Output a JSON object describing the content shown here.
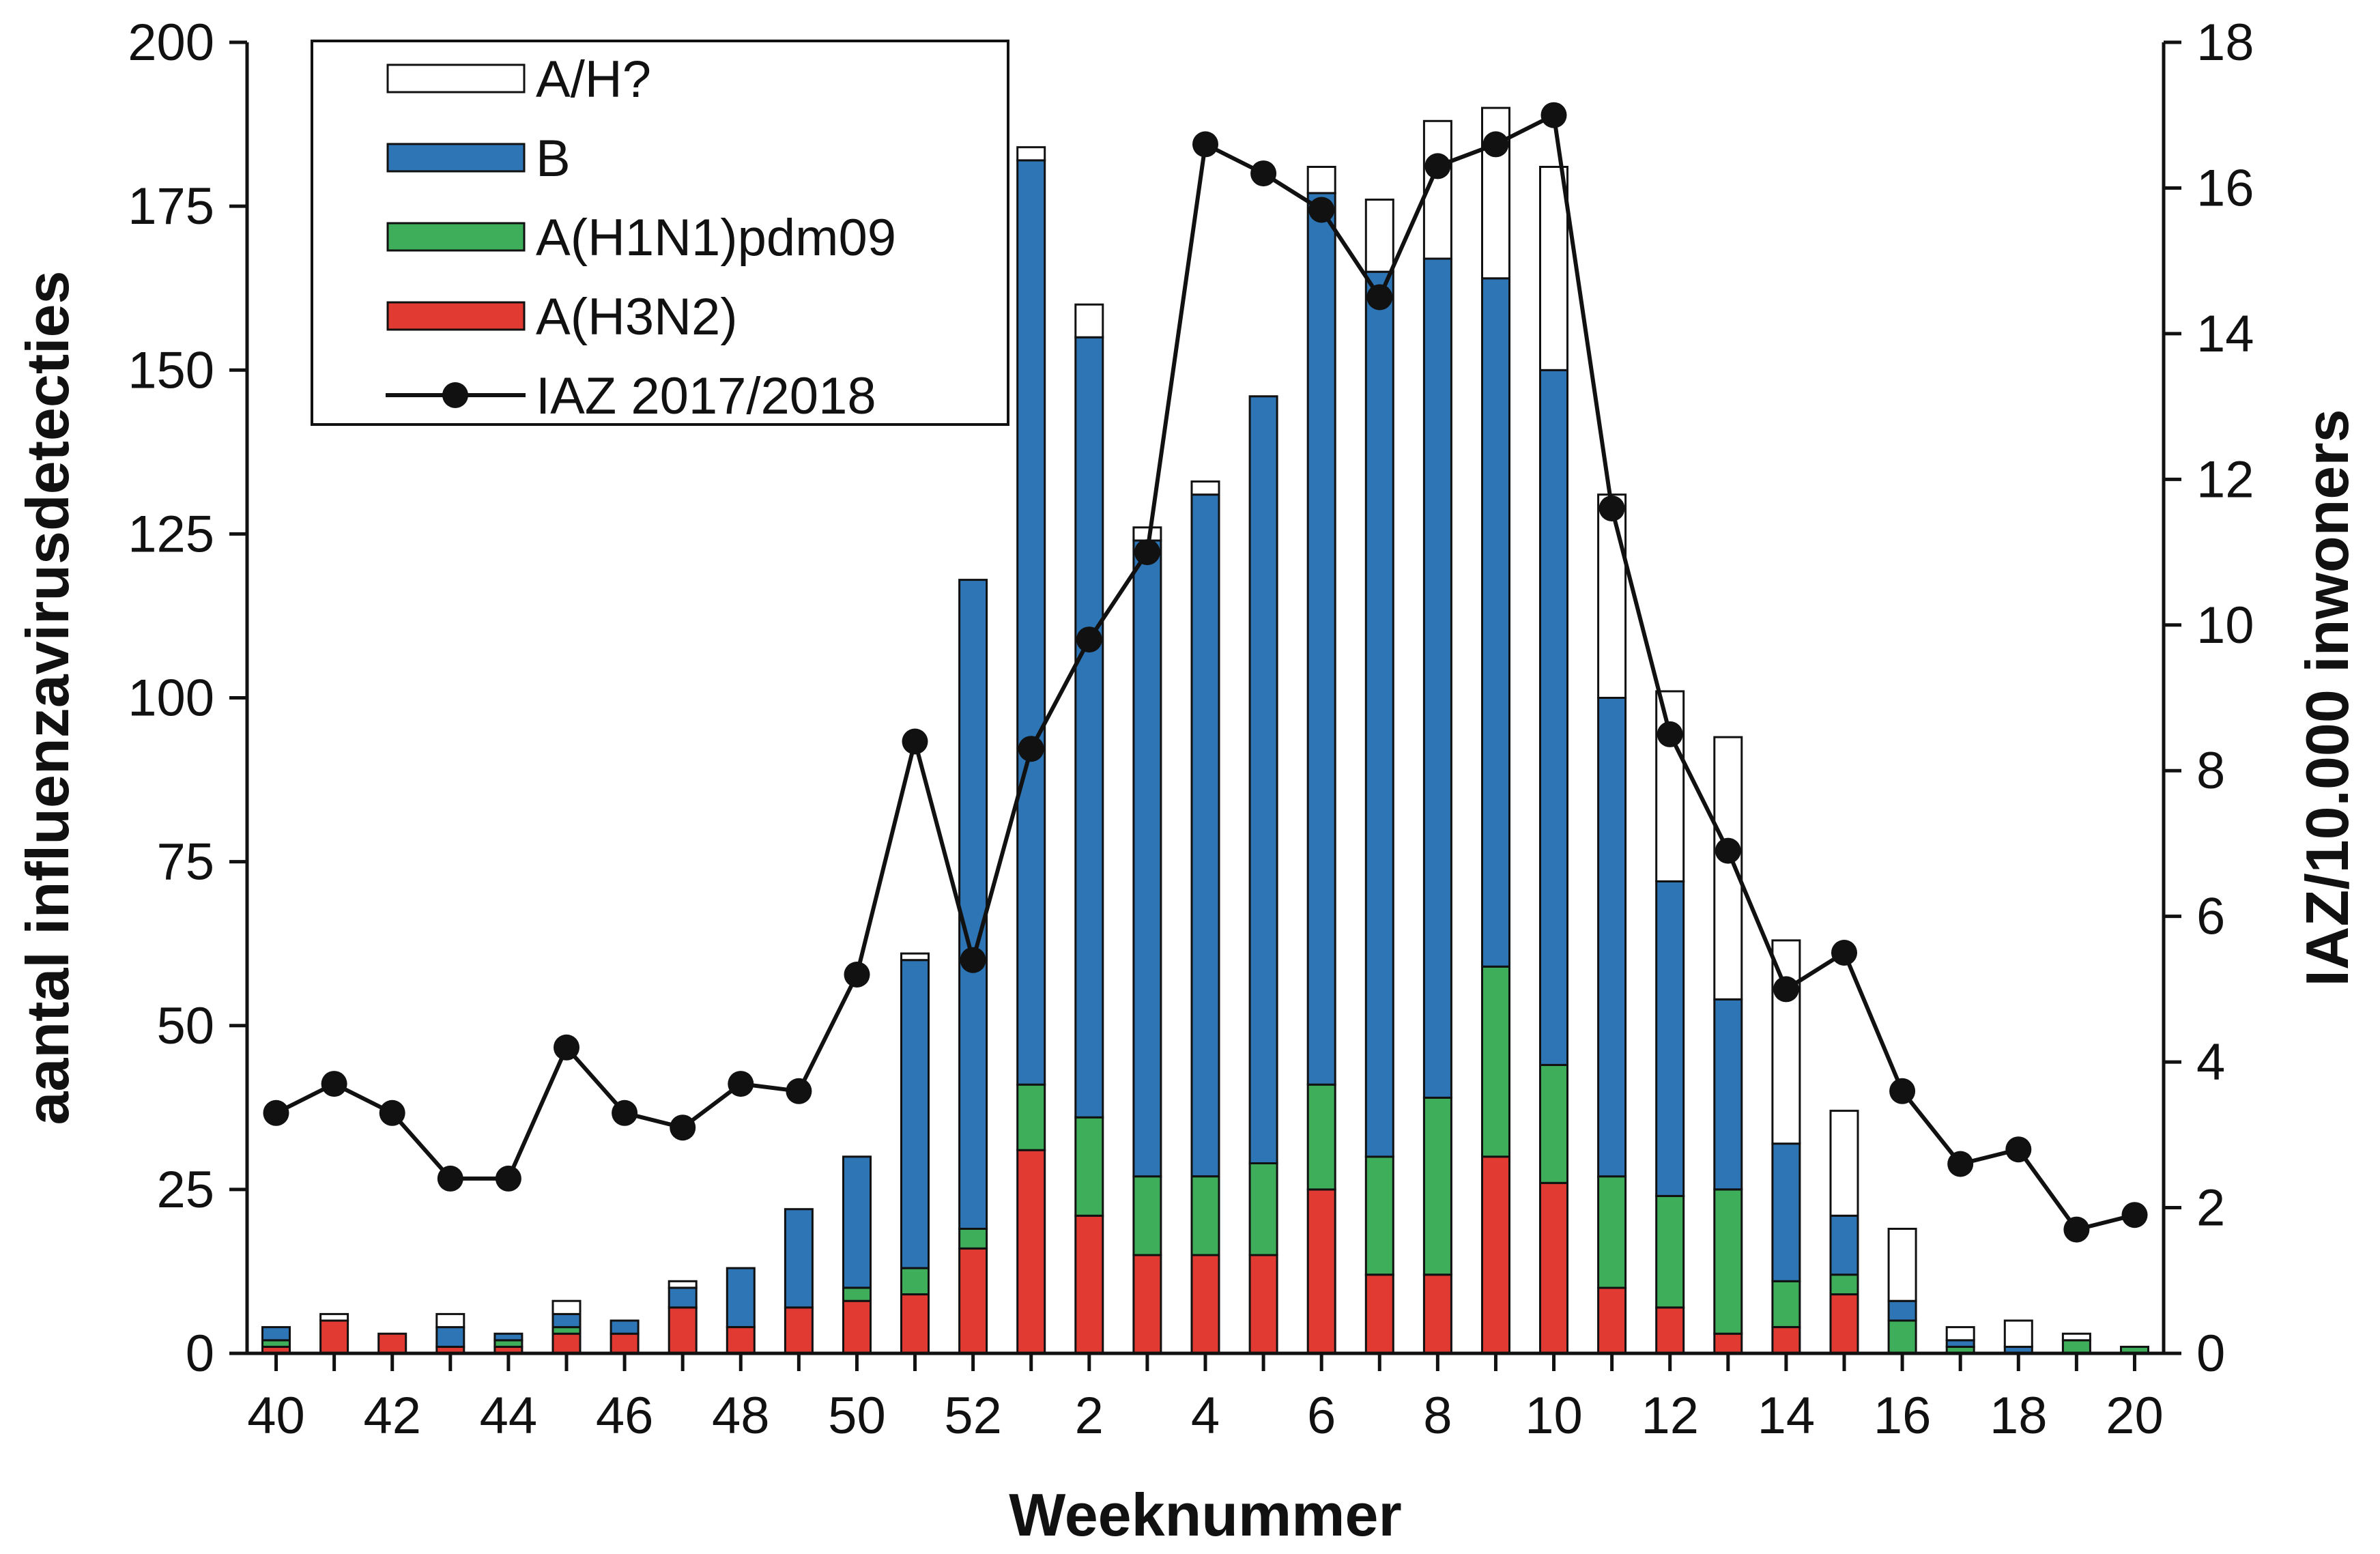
{
  "chart_data": {
    "type": "bar",
    "stacked": true,
    "title": "",
    "xlabel": "Weeknummer",
    "ylabel": "aantal influenzavirusdetecties",
    "y2label": "IAZ/10.000 inwoners",
    "ylim": [
      0,
      200
    ],
    "y2lim": [
      0,
      18
    ],
    "yticks": [
      0,
      25,
      50,
      75,
      100,
      125,
      150,
      175,
      200
    ],
    "y2ticks": [
      0,
      2,
      4,
      6,
      8,
      10,
      12,
      14,
      16,
      18
    ],
    "grid": false,
    "legend_position": "top-left",
    "categories": [
      "40",
      "41",
      "42",
      "43",
      "44",
      "45",
      "46",
      "47",
      "48",
      "49",
      "50",
      "51",
      "52",
      "1",
      "2",
      "3",
      "4",
      "5",
      "6",
      "7",
      "8",
      "9",
      "10",
      "11",
      "12",
      "13",
      "14",
      "15",
      "16",
      "17",
      "18",
      "19",
      "20"
    ],
    "xtick_labels": [
      "40",
      "",
      "42",
      "",
      "44",
      "",
      "46",
      "",
      "48",
      "",
      "50",
      "",
      "52",
      "",
      "2",
      "",
      "4",
      "",
      "6",
      "",
      "8",
      "",
      "10",
      "",
      "12",
      "",
      "14",
      "",
      "16",
      "",
      "18",
      "",
      "20"
    ],
    "series": [
      {
        "name": "A(H3N2)",
        "color": "#e03a33",
        "values": [
          1,
          5,
          3,
          1,
          1,
          3,
          3,
          7,
          4,
          7,
          8,
          9,
          16,
          31,
          21,
          15,
          15,
          15,
          25,
          12,
          12,
          30,
          26,
          10,
          7,
          3,
          4,
          9,
          0,
          0,
          0,
          0,
          0
        ]
      },
      {
        "name": "A(H1N1)pdm09",
        "color": "#3fae5a",
        "values": [
          1,
          0,
          0,
          0,
          1,
          1,
          0,
          0,
          0,
          0,
          2,
          4,
          3,
          10,
          15,
          12,
          12,
          14,
          16,
          18,
          27,
          29,
          18,
          17,
          17,
          22,
          7,
          3,
          5,
          1,
          0,
          2,
          1
        ]
      },
      {
        "name": "B",
        "color": "#2e75b6",
        "values": [
          2,
          0,
          0,
          3,
          1,
          2,
          2,
          3,
          9,
          15,
          20,
          47,
          99,
          141,
          119,
          97,
          104,
          117,
          136,
          135,
          128,
          105,
          106,
          73,
          48,
          29,
          21,
          9,
          3,
          1,
          1,
          0,
          0
        ]
      },
      {
        "name": "A/H?",
        "color": "#ffffff",
        "values": [
          0,
          1,
          0,
          2,
          0,
          2,
          0,
          1,
          0,
          0,
          0,
          1,
          0,
          2,
          5,
          2,
          2,
          0,
          4,
          11,
          21,
          26,
          31,
          31,
          29,
          40,
          31,
          16,
          11,
          2,
          4,
          1,
          0
        ]
      }
    ],
    "line_series": {
      "name": "IAZ 2017/2018",
      "axis": "right",
      "color": "#111111",
      "values": [
        3.3,
        3.7,
        3.3,
        2.4,
        2.4,
        4.2,
        3.3,
        3.1,
        3.7,
        3.6,
        5.2,
        8.4,
        5.4,
        8.3,
        9.8,
        11.0,
        16.6,
        16.2,
        15.7,
        14.5,
        16.3,
        16.6,
        17.0,
        11.6,
        8.5,
        6.9,
        5.0,
        5.5,
        3.6,
        2.6,
        2.8,
        1.7,
        1.9
      ]
    },
    "legend_order": [
      "A/H?",
      "B",
      "A(H1N1)pdm09",
      "A(H3N2)",
      "IAZ 2017/2018"
    ]
  }
}
